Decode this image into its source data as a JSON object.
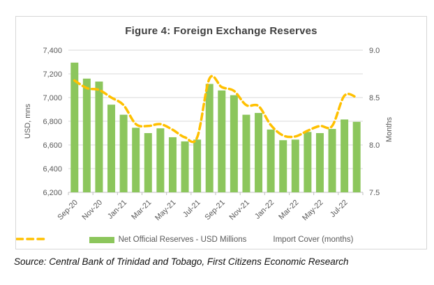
{
  "figure": {
    "title": "Figure 4: Foreign Exchange Reserves",
    "source_note": "Source: Central Bank of Trinidad and Tobago, First Citizens Economic Research"
  },
  "colors": {
    "bar_green": "#8cc65c",
    "line_gold": "#ffc000",
    "gridline": "#d9d9d9",
    "axis_line": "#bfbfbf",
    "axis_text": "#595959",
    "title_text": "#404040"
  },
  "chart_data": {
    "type": "bar",
    "subtype": "combo-bar-line",
    "grid": true,
    "legend_position": "bottom",
    "title": "Figure 4: Foreign Exchange Reserves",
    "categories": [
      "Sep-20",
      "Oct-20",
      "Nov-20",
      "Dec-20",
      "Jan-21",
      "Feb-21",
      "Mar-21",
      "Apr-21",
      "May-21",
      "Jun-21",
      "Jul-21",
      "Aug-21",
      "Sep-21",
      "Oct-21",
      "Nov-21",
      "Dec-21",
      "Jan-22",
      "Feb-22",
      "Mar-22",
      "Apr-22",
      "May-22",
      "Jun-22",
      "Jul-22",
      "Aug-22"
    ],
    "x_label_every": 2,
    "series": [
      {
        "name": "Net Official Reserves - USD Millions",
        "type": "bar",
        "y_axis": "left",
        "color": "#8cc65c",
        "values": [
          7295,
          7160,
          7135,
          6940,
          6855,
          6745,
          6700,
          6740,
          6665,
          6630,
          6645,
          7115,
          7060,
          7020,
          6855,
          6870,
          6730,
          6640,
          6645,
          6710,
          6700,
          6735,
          6815,
          6795
        ]
      },
      {
        "name": "Import Cover (months)",
        "type": "line-dashed-smooth",
        "y_axis": "right",
        "color": "#ffc000",
        "values": [
          8.68,
          8.6,
          8.58,
          8.5,
          8.42,
          8.22,
          8.2,
          8.22,
          8.16,
          8.08,
          8.08,
          8.7,
          8.61,
          8.57,
          8.42,
          8.41,
          8.21,
          8.1,
          8.09,
          8.15,
          8.2,
          8.2,
          8.52,
          8.5
        ]
      }
    ],
    "left_axis": {
      "title": "USD, mns",
      "min": 6200,
      "max": 7400,
      "step": 200,
      "tick_labels": [
        "7,400",
        "7,200",
        "7,000",
        "6,800",
        "6,600",
        "6,400",
        "6,200"
      ]
    },
    "right_axis": {
      "title": "Months",
      "min": 7.5,
      "max": 9.0,
      "step": 0.5,
      "tick_labels": [
        "9.0",
        "8.5",
        "8.0",
        "7.5"
      ]
    }
  }
}
